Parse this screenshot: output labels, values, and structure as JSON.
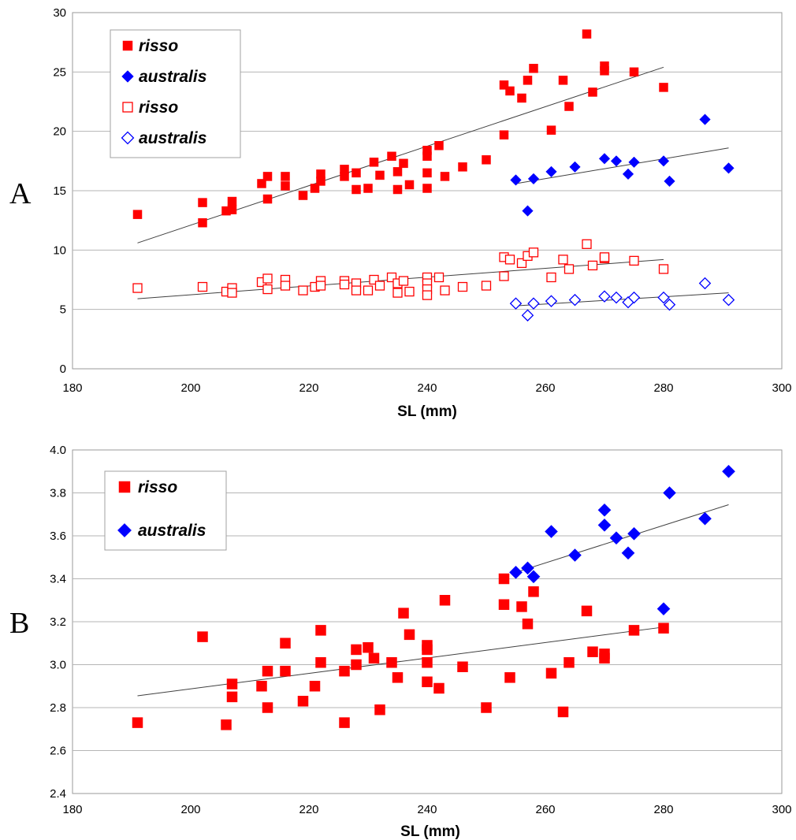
{
  "chart_data": [
    {
      "type": "scatter",
      "panel_label": "A",
      "xlabel": "SL (mm)",
      "ylabel": "",
      "xlim": [
        180,
        300
      ],
      "ylim": [
        0,
        30
      ],
      "xticks": [
        "180",
        "200",
        "220",
        "240",
        "260",
        "280",
        "300"
      ],
      "yticks": [
        "0",
        "5",
        "10",
        "15",
        "20",
        "25",
        "30"
      ],
      "grid": "horizontal",
      "legend_position": "top-left",
      "legend": [
        {
          "label": "risso",
          "marker": "square",
          "filled": true,
          "color": "#ff0000"
        },
        {
          "label": "australis",
          "marker": "diamond",
          "filled": true,
          "color": "#0000ff"
        },
        {
          "label": "risso",
          "marker": "square",
          "filled": false,
          "color": "#ff0000"
        },
        {
          "label": "australis",
          "marker": "diamond",
          "filled": false,
          "color": "#0000ff"
        }
      ],
      "series": [
        {
          "name": "risso",
          "marker": "square",
          "filled": true,
          "color": "#ff0000",
          "trendline": [
            [
              191,
              10.6
            ],
            [
              280,
              25.4
            ]
          ],
          "points": [
            [
              191,
              13.0
            ],
            [
              202,
              14.0
            ],
            [
              202,
              12.3
            ],
            [
              206,
              13.3
            ],
            [
              207,
              14.1
            ],
            [
              207,
              13.4
            ],
            [
              212,
              15.6
            ],
            [
              213,
              16.2
            ],
            [
              213,
              14.3
            ],
            [
              216,
              16.2
            ],
            [
              216,
              15.4
            ],
            [
              219,
              14.6
            ],
            [
              221,
              15.2
            ],
            [
              222,
              16.4
            ],
            [
              222,
              15.8
            ],
            [
              226,
              16.8
            ],
            [
              226,
              16.2
            ],
            [
              228,
              16.5
            ],
            [
              228,
              15.1
            ],
            [
              230,
              15.2
            ],
            [
              231,
              17.4
            ],
            [
              232,
              16.3
            ],
            [
              234,
              17.9
            ],
            [
              235,
              16.6
            ],
            [
              235,
              15.1
            ],
            [
              236,
              17.3
            ],
            [
              237,
              15.5
            ],
            [
              240,
              18.4
            ],
            [
              240,
              17.9
            ],
            [
              240,
              16.5
            ],
            [
              240,
              15.2
            ],
            [
              242,
              18.8
            ],
            [
              243,
              16.2
            ],
            [
              246,
              17.0
            ],
            [
              250,
              17.6
            ],
            [
              253,
              23.9
            ],
            [
              253,
              19.7
            ],
            [
              254,
              23.4
            ],
            [
              256,
              22.8
            ],
            [
              257,
              24.3
            ],
            [
              258,
              25.3
            ],
            [
              261,
              20.1
            ],
            [
              263,
              24.3
            ],
            [
              264,
              22.1
            ],
            [
              267,
              28.2
            ],
            [
              268,
              23.3
            ],
            [
              270,
              25.5
            ],
            [
              270,
              25.1
            ],
            [
              275,
              25.0
            ],
            [
              280,
              23.7
            ]
          ]
        },
        {
          "name": "australis",
          "marker": "diamond",
          "filled": true,
          "color": "#0000ff",
          "trendline": [
            [
              255,
              15.6
            ],
            [
              291,
              18.6
            ]
          ],
          "points": [
            [
              255,
              15.9
            ],
            [
              257,
              13.3
            ],
            [
              258,
              16.0
            ],
            [
              261,
              16.6
            ],
            [
              265,
              17.0
            ],
            [
              270,
              17.7
            ],
            [
              272,
              17.5
            ],
            [
              274,
              16.4
            ],
            [
              275,
              17.4
            ],
            [
              280,
              17.5
            ],
            [
              281,
              15.8
            ],
            [
              287,
              21.0
            ],
            [
              291,
              16.9
            ]
          ]
        },
        {
          "name": "risso",
          "marker": "square",
          "filled": false,
          "color": "#ff0000",
          "trendline": [
            [
              191,
              5.9
            ],
            [
              280,
              9.2
            ]
          ],
          "points": [
            [
              191,
              6.8
            ],
            [
              202,
              6.9
            ],
            [
              206,
              6.5
            ],
            [
              207,
              6.8
            ],
            [
              207,
              6.4
            ],
            [
              212,
              7.3
            ],
            [
              213,
              7.6
            ],
            [
              213,
              6.7
            ],
            [
              216,
              7.5
            ],
            [
              216,
              7.0
            ],
            [
              219,
              6.6
            ],
            [
              221,
              6.9
            ],
            [
              222,
              7.4
            ],
            [
              222,
              7.0
            ],
            [
              226,
              7.4
            ],
            [
              226,
              7.1
            ],
            [
              228,
              7.2
            ],
            [
              228,
              6.6
            ],
            [
              230,
              6.6
            ],
            [
              231,
              7.5
            ],
            [
              232,
              7.0
            ],
            [
              234,
              7.7
            ],
            [
              235,
              7.2
            ],
            [
              235,
              6.4
            ],
            [
              236,
              7.4
            ],
            [
              237,
              6.5
            ],
            [
              240,
              7.7
            ],
            [
              240,
              7.2
            ],
            [
              240,
              6.7
            ],
            [
              240,
              6.2
            ],
            [
              242,
              7.7
            ],
            [
              243,
              6.6
            ],
            [
              246,
              6.9
            ],
            [
              250,
              7.0
            ],
            [
              253,
              9.4
            ],
            [
              253,
              7.8
            ],
            [
              254,
              9.2
            ],
            [
              256,
              8.9
            ],
            [
              257,
              9.5
            ],
            [
              258,
              9.8
            ],
            [
              261,
              7.7
            ],
            [
              263,
              9.2
            ],
            [
              264,
              8.4
            ],
            [
              267,
              10.5
            ],
            [
              268,
              8.7
            ],
            [
              270,
              9.3
            ],
            [
              270,
              9.4
            ],
            [
              275,
              9.1
            ],
            [
              280,
              8.4
            ]
          ]
        },
        {
          "name": "australis",
          "marker": "diamond",
          "filled": false,
          "color": "#0000ff",
          "trendline": [
            [
              255,
              5.3
            ],
            [
              291,
              6.4
            ]
          ],
          "points": [
            [
              255,
              5.5
            ],
            [
              257,
              4.5
            ],
            [
              258,
              5.5
            ],
            [
              261,
              5.7
            ],
            [
              265,
              5.8
            ],
            [
              270,
              6.1
            ],
            [
              272,
              6.0
            ],
            [
              274,
              5.6
            ],
            [
              275,
              6.0
            ],
            [
              280,
              6.0
            ],
            [
              281,
              5.4
            ],
            [
              287,
              7.2
            ],
            [
              291,
              5.8
            ]
          ]
        }
      ]
    },
    {
      "type": "scatter",
      "panel_label": "B",
      "xlabel": "SL (mm)",
      "ylabel": "",
      "xlim": [
        180,
        300
      ],
      "ylim": [
        2.4,
        4.0
      ],
      "xticks": [
        "180",
        "200",
        "220",
        "240",
        "260",
        "280",
        "300"
      ],
      "yticks": [
        "2.4",
        "2.6",
        "2.8",
        "3.0",
        "3.2",
        "3.4",
        "3.6",
        "3.8",
        "4.0"
      ],
      "grid": "horizontal",
      "legend_position": "top-left",
      "legend": [
        {
          "label": "risso",
          "marker": "square",
          "filled": true,
          "color": "#ff0000"
        },
        {
          "label": "australis",
          "marker": "diamond",
          "filled": true,
          "color": "#0000ff"
        }
      ],
      "series": [
        {
          "name": "risso",
          "marker": "square",
          "filled": true,
          "color": "#ff0000",
          "trendline": [
            [
              191,
              2.855
            ],
            [
              280,
              3.175
            ]
          ],
          "points": [
            [
              191,
              2.73
            ],
            [
              202,
              3.13
            ],
            [
              206,
              2.72
            ],
            [
              207,
              2.91
            ],
            [
              207,
              2.85
            ],
            [
              212,
              2.9
            ],
            [
              213,
              2.97
            ],
            [
              213,
              2.8
            ],
            [
              216,
              3.1
            ],
            [
              216,
              2.97
            ],
            [
              219,
              2.83
            ],
            [
              221,
              2.9
            ],
            [
              222,
              3.16
            ],
            [
              222,
              3.01
            ],
            [
              226,
              2.97
            ],
            [
              226,
              2.73
            ],
            [
              228,
              3.07
            ],
            [
              228,
              3.0
            ],
            [
              230,
              3.08
            ],
            [
              231,
              3.03
            ],
            [
              232,
              2.79
            ],
            [
              234,
              3.01
            ],
            [
              235,
              2.94
            ],
            [
              236,
              3.24
            ],
            [
              237,
              3.14
            ],
            [
              240,
              3.09
            ],
            [
              240,
              3.07
            ],
            [
              240,
              3.01
            ],
            [
              240,
              2.92
            ],
            [
              242,
              2.89
            ],
            [
              243,
              3.3
            ],
            [
              246,
              2.99
            ],
            [
              250,
              2.8
            ],
            [
              253,
              3.4
            ],
            [
              253,
              3.28
            ],
            [
              254,
              2.94
            ],
            [
              256,
              3.27
            ],
            [
              257,
              3.19
            ],
            [
              258,
              3.34
            ],
            [
              261,
              2.96
            ],
            [
              263,
              2.78
            ],
            [
              264,
              3.01
            ],
            [
              267,
              3.25
            ],
            [
              268,
              3.06
            ],
            [
              270,
              3.05
            ],
            [
              270,
              3.03
            ],
            [
              275,
              3.16
            ],
            [
              280,
              3.17
            ]
          ]
        },
        {
          "name": "australis",
          "marker": "diamond",
          "filled": true,
          "color": "#0000ff",
          "trendline": [
            [
              255,
              3.43
            ],
            [
              291,
              3.745
            ]
          ],
          "points": [
            [
              255,
              3.43
            ],
            [
              257,
              3.45
            ],
            [
              258,
              3.41
            ],
            [
              261,
              3.62
            ],
            [
              265,
              3.51
            ],
            [
              270,
              3.72
            ],
            [
              270,
              3.65
            ],
            [
              272,
              3.59
            ],
            [
              274,
              3.52
            ],
            [
              275,
              3.61
            ],
            [
              280,
              3.26
            ],
            [
              281,
              3.8
            ],
            [
              287,
              3.68
            ],
            [
              291,
              3.9
            ]
          ]
        }
      ]
    }
  ]
}
